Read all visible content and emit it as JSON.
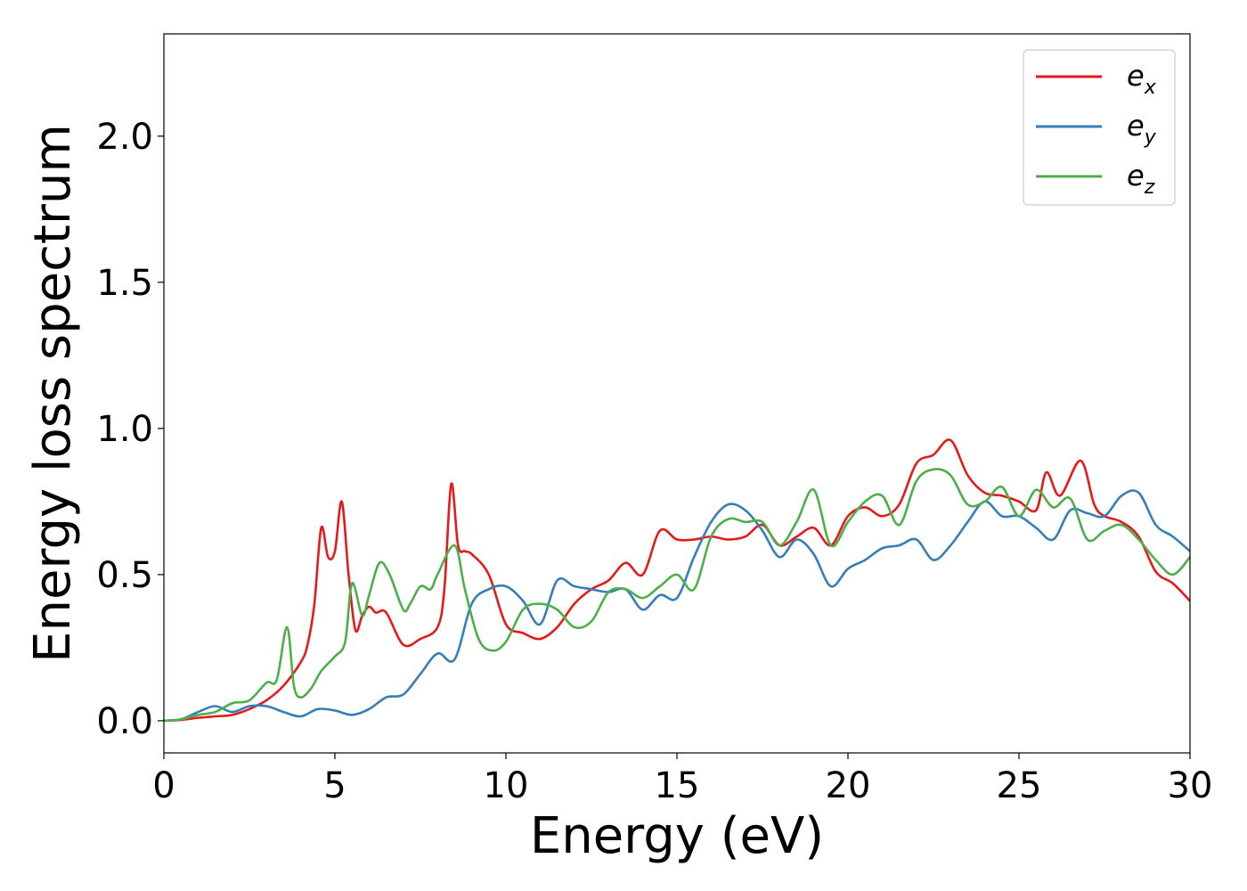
{
  "chart_data": {
    "type": "line",
    "xlabel": "Energy (eV)",
    "ylabel": "Energy loss spectrum",
    "xlim": [
      0,
      30
    ],
    "ylim": [
      -0.11,
      2.35
    ],
    "xticks": [
      "0",
      "5",
      "10",
      "15",
      "20",
      "25",
      "30"
    ],
    "yticks": [
      "0.0",
      "0.5",
      "1.0",
      "1.5",
      "2.0"
    ],
    "grid": false,
    "legend_position": "top-right",
    "series": [
      {
        "name": "e",
        "subscript": "x",
        "color": "#e41a1c",
        "x": [
          0,
          0.5,
          1,
          1.5,
          2,
          2.5,
          3,
          3.5,
          4,
          4.2,
          4.4,
          4.6,
          4.8,
          5.0,
          5.2,
          5.4,
          5.6,
          5.8,
          6.0,
          6.2,
          6.5,
          7.0,
          7.5,
          8.0,
          8.2,
          8.4,
          8.6,
          8.8,
          9.0,
          9.5,
          10.0,
          10.5,
          11.0,
          11.5,
          12.0,
          12.5,
          13.0,
          13.5,
          14.0,
          14.5,
          15.0,
          15.5,
          16.0,
          16.5,
          17.0,
          17.5,
          18.0,
          18.5,
          19.0,
          19.5,
          20.0,
          20.5,
          21.0,
          21.5,
          22.0,
          22.5,
          23.0,
          23.5,
          24.0,
          24.5,
          25.0,
          25.5,
          25.8,
          26.2,
          26.8,
          27.2,
          27.5,
          28.0,
          28.5,
          29.0,
          29.5,
          30.0
        ],
        "values": [
          0.0,
          0.003,
          0.01,
          0.015,
          0.02,
          0.04,
          0.07,
          0.12,
          0.2,
          0.26,
          0.4,
          0.66,
          0.56,
          0.58,
          0.75,
          0.5,
          0.31,
          0.36,
          0.39,
          0.37,
          0.37,
          0.26,
          0.28,
          0.32,
          0.45,
          0.81,
          0.6,
          0.58,
          0.57,
          0.5,
          0.33,
          0.3,
          0.28,
          0.32,
          0.4,
          0.45,
          0.48,
          0.54,
          0.5,
          0.65,
          0.62,
          0.62,
          0.63,
          0.62,
          0.63,
          0.67,
          0.6,
          0.63,
          0.66,
          0.6,
          0.7,
          0.73,
          0.7,
          0.74,
          0.88,
          0.91,
          0.96,
          0.84,
          0.78,
          0.77,
          0.75,
          0.72,
          0.85,
          0.77,
          0.89,
          0.74,
          0.7,
          0.68,
          0.63,
          0.51,
          0.47,
          0.41
        ]
      },
      {
        "name": "e",
        "subscript": "y",
        "color": "#377eb8",
        "x": [
          0,
          0.5,
          1.0,
          1.5,
          2.0,
          2.5,
          3.0,
          3.5,
          4.0,
          4.5,
          5.0,
          5.5,
          6.0,
          6.5,
          7.0,
          7.5,
          8.0,
          8.5,
          9.0,
          9.5,
          10.0,
          10.5,
          11.0,
          11.5,
          12.0,
          12.5,
          13.0,
          13.5,
          14.0,
          14.5,
          15.0,
          15.5,
          16.0,
          16.5,
          17.0,
          17.5,
          18.0,
          18.5,
          19.0,
          19.5,
          20.0,
          20.5,
          21.0,
          21.5,
          22.0,
          22.5,
          23.0,
          23.5,
          24.0,
          24.5,
          25.0,
          25.5,
          26.0,
          26.5,
          27.0,
          27.5,
          28.0,
          28.5,
          29.0,
          29.5,
          30.0
        ],
        "values": [
          0.0,
          0.005,
          0.03,
          0.05,
          0.03,
          0.05,
          0.05,
          0.03,
          0.015,
          0.04,
          0.035,
          0.02,
          0.04,
          0.08,
          0.09,
          0.16,
          0.23,
          0.21,
          0.4,
          0.45,
          0.46,
          0.41,
          0.33,
          0.48,
          0.46,
          0.45,
          0.44,
          0.45,
          0.38,
          0.43,
          0.42,
          0.56,
          0.68,
          0.74,
          0.72,
          0.65,
          0.56,
          0.62,
          0.57,
          0.46,
          0.52,
          0.55,
          0.59,
          0.6,
          0.62,
          0.55,
          0.6,
          0.68,
          0.75,
          0.7,
          0.7,
          0.66,
          0.62,
          0.72,
          0.71,
          0.7,
          0.77,
          0.78,
          0.67,
          0.63,
          0.58
        ]
      },
      {
        "name": "e",
        "subscript": "z",
        "color": "#4daf4a",
        "x": [
          0,
          0.5,
          1.0,
          1.5,
          2.0,
          2.5,
          3.0,
          3.3,
          3.6,
          3.8,
          4.0,
          4.3,
          4.6,
          5.0,
          5.3,
          5.5,
          5.8,
          6.0,
          6.3,
          6.6,
          7.0,
          7.2,
          7.5,
          7.8,
          8.0,
          8.5,
          8.8,
          9.2,
          9.6,
          10.0,
          10.5,
          11.0,
          11.5,
          12.0,
          12.5,
          13.0,
          13.5,
          14.0,
          14.5,
          15.0,
          15.5,
          16.0,
          16.5,
          17.0,
          17.5,
          18.0,
          18.5,
          19.0,
          19.5,
          20.0,
          20.5,
          21.0,
          21.5,
          22.0,
          22.5,
          23.0,
          23.5,
          24.0,
          24.5,
          25.0,
          25.5,
          26.0,
          26.5,
          27.0,
          27.5,
          28.0,
          28.5,
          29.0,
          29.5,
          30.0
        ],
        "values": [
          0.0,
          0.005,
          0.02,
          0.03,
          0.06,
          0.07,
          0.13,
          0.14,
          0.32,
          0.12,
          0.08,
          0.11,
          0.17,
          0.22,
          0.27,
          0.47,
          0.36,
          0.43,
          0.54,
          0.5,
          0.38,
          0.4,
          0.46,
          0.45,
          0.5,
          0.6,
          0.45,
          0.28,
          0.24,
          0.27,
          0.38,
          0.4,
          0.38,
          0.32,
          0.34,
          0.44,
          0.45,
          0.42,
          0.46,
          0.5,
          0.45,
          0.63,
          0.69,
          0.68,
          0.68,
          0.6,
          0.68,
          0.79,
          0.6,
          0.68,
          0.75,
          0.77,
          0.67,
          0.82,
          0.86,
          0.84,
          0.74,
          0.75,
          0.8,
          0.7,
          0.79,
          0.73,
          0.76,
          0.62,
          0.65,
          0.67,
          0.62,
          0.55,
          0.5,
          0.56
        ]
      }
    ]
  }
}
